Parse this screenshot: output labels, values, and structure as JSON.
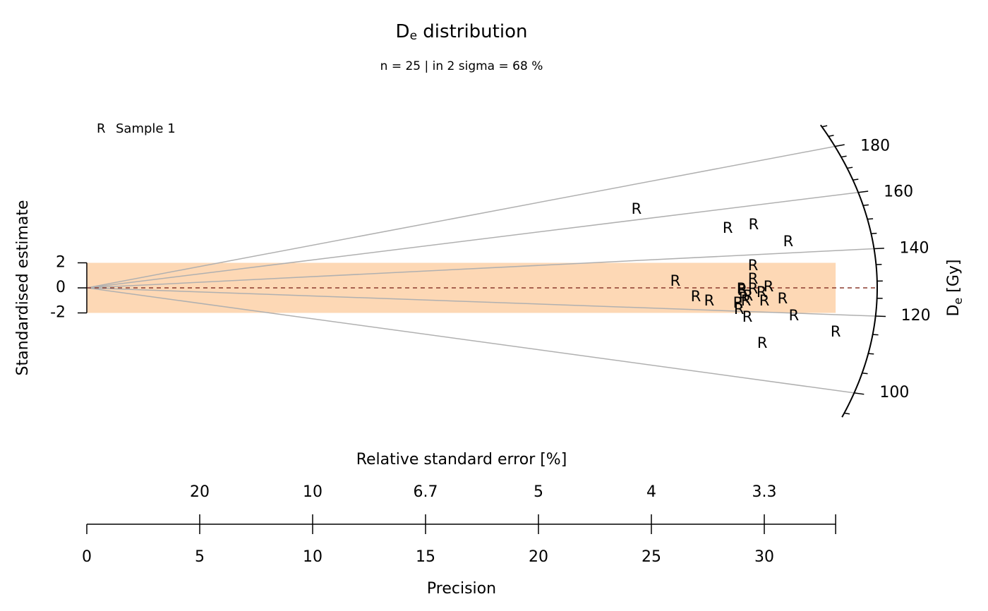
{
  "chart_data": {
    "type": "radial",
    "title": [
      "D",
      "e",
      " distribution"
    ],
    "subtitle": "n = 25 | in 2 sigma = 68 %",
    "y_label": "Standardised estimate",
    "x_label": "Precision",
    "x2_label": "Relative standard error [%]",
    "z_label": [
      "D",
      "e",
      " [Gy]"
    ],
    "xlim": [
      0,
      35
    ],
    "xticks": [
      0,
      5,
      10,
      15,
      20,
      25,
      30
    ],
    "x2ticks": [
      {
        "value": 5,
        "label": "20"
      },
      {
        "value": 10,
        "label": "10"
      },
      {
        "value": 15,
        "label": "6.7"
      },
      {
        "value": 20,
        "label": "5"
      },
      {
        "value": 25,
        "label": "4"
      },
      {
        "value": 30,
        "label": "3.3"
      }
    ],
    "ylim": [
      -14,
      14
    ],
    "yticks": [
      -2,
      0,
      2
    ],
    "band": [
      -2,
      2
    ],
    "band_color": "#fdd8b5",
    "central_value": 128,
    "zlim": [
      94,
      191
    ],
    "zticks": [
      100,
      120,
      140,
      160,
      180
    ],
    "zminor": [
      95,
      105,
      110,
      115,
      125,
      130,
      135,
      145,
      150,
      155,
      165,
      170,
      175,
      185,
      190
    ],
    "series": [
      {
        "name": "Sample 1",
        "marker": "R",
        "color": "#8b3a2f",
        "x": [
          24.34,
          28.38,
          29.53,
          31.06,
          29.5,
          26.06,
          29.5,
          30.19,
          29.0,
          29.5,
          29.88,
          26.97,
          27.56,
          29.09,
          29.19,
          30.0,
          30.81,
          28.88,
          29.25,
          31.31,
          33.16,
          29.91,
          29.03,
          29.28,
          28.84
        ],
        "values": [
          6.25,
          4.73,
          5.01,
          3.66,
          1.75,
          0.51,
          0.68,
          0.06,
          -0.11,
          -0.11,
          -0.39,
          -0.73,
          -1.07,
          -0.85,
          -1.07,
          -1.07,
          -0.9,
          -1.75,
          -2.37,
          -2.25,
          -3.55,
          -4.45,
          -0.23,
          -0.68,
          -1.24
        ]
      }
    ]
  }
}
